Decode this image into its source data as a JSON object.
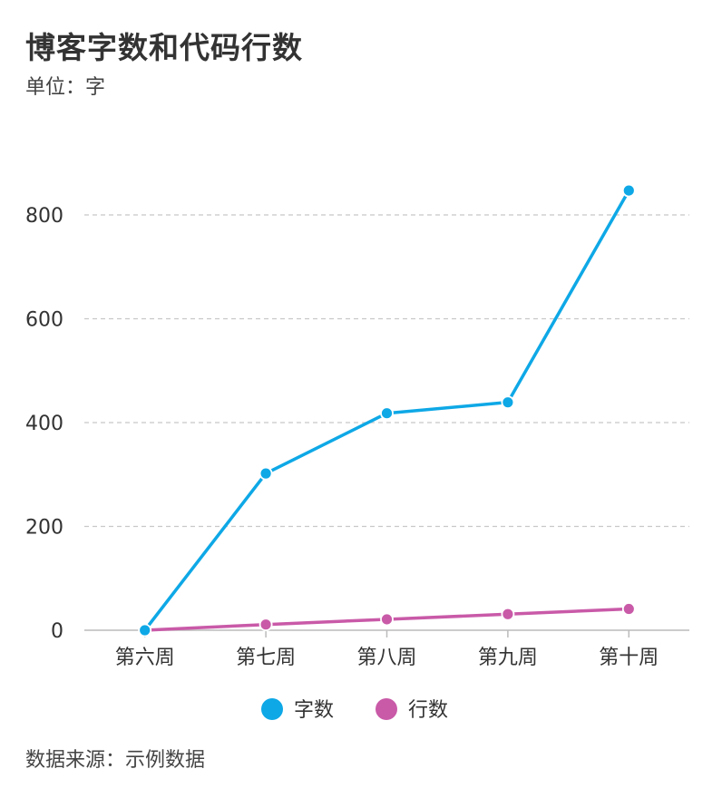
{
  "chart_data": {
    "type": "line",
    "title": "博客字数和代码行数",
    "subtitle": "单位：字",
    "source": "数据来源：示例数据",
    "categories": [
      "第六周",
      "第七周",
      "第八周",
      "第九周",
      "第十周"
    ],
    "series": [
      {
        "name": "字数",
        "color": "#0ea8e6",
        "values": [
          0,
          302,
          418,
          439,
          847
        ]
      },
      {
        "name": "行数",
        "color": "#c95aa8",
        "values": [
          0,
          11,
          21,
          31,
          41
        ]
      }
    ],
    "yticks": [
      "0",
      "200",
      "400",
      "600",
      "800"
    ],
    "ylim": [
      0,
      900
    ],
    "grid": true,
    "legend": "bottom"
  }
}
